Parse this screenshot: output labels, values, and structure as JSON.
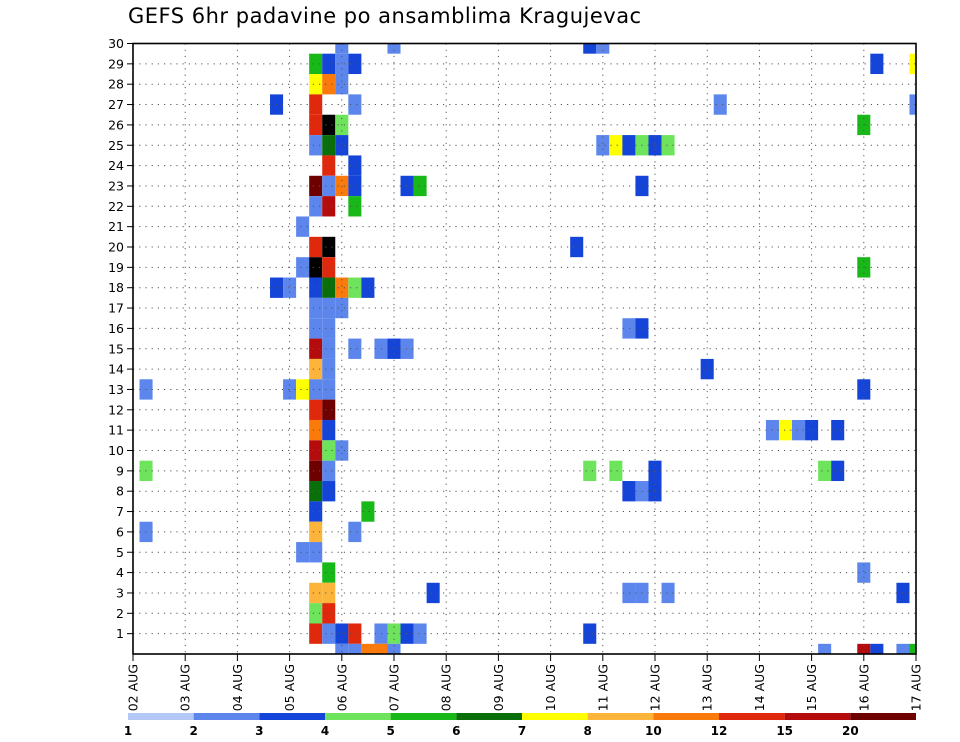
{
  "title": "GEFS 6hr padavine po ansamblima Kragujevac",
  "chart_data": {
    "type": "heatmap",
    "title": "GEFS 6hr padavine po ansamblima Kragujevac",
    "x_ticks": [
      "02 AUG",
      "03 AUG",
      "04 AUG",
      "05 AUG",
      "06 AUG",
      "07 AUG",
      "08 AUG",
      "09 AUG",
      "10 AUG",
      "11 AUG",
      "12 AUG",
      "13 AUG",
      "14 AUG",
      "15 AUG",
      "16 AUG",
      "17 AUG"
    ],
    "y_ticks": [
      "1",
      "2",
      "3",
      "4",
      "5",
      "6",
      "7",
      "8",
      "9",
      "10",
      "11",
      "12",
      "13",
      "14",
      "15",
      "16",
      "17",
      "18",
      "19",
      "20",
      "21",
      "22",
      "23",
      "24",
      "25",
      "26",
      "27",
      "28",
      "29",
      "30"
    ],
    "x_range": [
      0,
      60
    ],
    "y_range": [
      0,
      30
    ],
    "grid": true,
    "colorbar": {
      "labels": [
        "1",
        "2",
        "3",
        "4",
        "5",
        "6",
        "7",
        "8",
        "10",
        "12",
        "15",
        "20"
      ],
      "colors": [
        "#b4c8f6",
        "#5c86ec",
        "#1544d8",
        "#6ee45c",
        "#18b818",
        "#0a6e0a",
        "#ffff00",
        "#fcb43a",
        "#fa7a0c",
        "#e0280c",
        "#b40c0c",
        "#6e0000"
      ]
    },
    "cells": [
      [
        16,
        30,
        1
      ],
      [
        20,
        30,
        1
      ],
      [
        35,
        30,
        2
      ],
      [
        36,
        30,
        1
      ],
      [
        14,
        29,
        4
      ],
      [
        15,
        29,
        2
      ],
      [
        16,
        29,
        1
      ],
      [
        17,
        29,
        2
      ],
      [
        57,
        29,
        2
      ],
      [
        60,
        29,
        6
      ],
      [
        14,
        28,
        6
      ],
      [
        15,
        28,
        8
      ],
      [
        16,
        28,
        1
      ],
      [
        11,
        27,
        2
      ],
      [
        14,
        27,
        9
      ],
      [
        17,
        27,
        1
      ],
      [
        45,
        27,
        1
      ],
      [
        60,
        27,
        1
      ],
      [
        14,
        26,
        9
      ],
      [
        15,
        26,
        12
      ],
      [
        16,
        26,
        3
      ],
      [
        56,
        26,
        4
      ],
      [
        14,
        25,
        1
      ],
      [
        15,
        25,
        5
      ],
      [
        16,
        25,
        2
      ],
      [
        36,
        25,
        1
      ],
      [
        37,
        25,
        6
      ],
      [
        38,
        25,
        2
      ],
      [
        39,
        25,
        3
      ],
      [
        40,
        25,
        2
      ],
      [
        41,
        25,
        3
      ],
      [
        15,
        24,
        9
      ],
      [
        17,
        24,
        2
      ],
      [
        14,
        23,
        11
      ],
      [
        15,
        23,
        1
      ],
      [
        16,
        23,
        8
      ],
      [
        17,
        23,
        2
      ],
      [
        21,
        23,
        2
      ],
      [
        22,
        23,
        4
      ],
      [
        39,
        23,
        2
      ],
      [
        14,
        22,
        1
      ],
      [
        15,
        22,
        10
      ],
      [
        17,
        22,
        4
      ],
      [
        13,
        21,
        1
      ],
      [
        14,
        20,
        9
      ],
      [
        15,
        20,
        12
      ],
      [
        34,
        20,
        2
      ],
      [
        13,
        19,
        1
      ],
      [
        14,
        19,
        12
      ],
      [
        15,
        19,
        9
      ],
      [
        56,
        19,
        4
      ],
      [
        11,
        18,
        2
      ],
      [
        12,
        18,
        1
      ],
      [
        14,
        18,
        2
      ],
      [
        15,
        18,
        5
      ],
      [
        16,
        18,
        8
      ],
      [
        17,
        18,
        3
      ],
      [
        18,
        18,
        2
      ],
      [
        14,
        17,
        1
      ],
      [
        15,
        17,
        1
      ],
      [
        16,
        17,
        1
      ],
      [
        14,
        16,
        1
      ],
      [
        15,
        16,
        1
      ],
      [
        38,
        16,
        1
      ],
      [
        39,
        16,
        2
      ],
      [
        14,
        15,
        10
      ],
      [
        15,
        15,
        1
      ],
      [
        17,
        15,
        1
      ],
      [
        19,
        15,
        1
      ],
      [
        20,
        15,
        2
      ],
      [
        21,
        15,
        1
      ],
      [
        14,
        14,
        7
      ],
      [
        15,
        14,
        1
      ],
      [
        44,
        14,
        2
      ],
      [
        1,
        13,
        1
      ],
      [
        12,
        13,
        1
      ],
      [
        13,
        13,
        6
      ],
      [
        14,
        13,
        1
      ],
      [
        15,
        13,
        1
      ],
      [
        56,
        13,
        2
      ],
      [
        14,
        12,
        9
      ],
      [
        15,
        12,
        11
      ],
      [
        14,
        11,
        8
      ],
      [
        15,
        11,
        2
      ],
      [
        49,
        11,
        1
      ],
      [
        50,
        11,
        6
      ],
      [
        51,
        11,
        1
      ],
      [
        52,
        11,
        2
      ],
      [
        54,
        11,
        2
      ],
      [
        14,
        10,
        10
      ],
      [
        15,
        10,
        3
      ],
      [
        16,
        10,
        1
      ],
      [
        1,
        9,
        3
      ],
      [
        14,
        9,
        11
      ],
      [
        15,
        9,
        1
      ],
      [
        35,
        9,
        3
      ],
      [
        37,
        9,
        3
      ],
      [
        40,
        9,
        2
      ],
      [
        53,
        9,
        3
      ],
      [
        54,
        9,
        2
      ],
      [
        14,
        8,
        5
      ],
      [
        15,
        8,
        2
      ],
      [
        38,
        8,
        2
      ],
      [
        39,
        8,
        1
      ],
      [
        40,
        8,
        2
      ],
      [
        14,
        7,
        2
      ],
      [
        18,
        7,
        4
      ],
      [
        1,
        6,
        1
      ],
      [
        14,
        6,
        7
      ],
      [
        17,
        6,
        1
      ],
      [
        13,
        5,
        1
      ],
      [
        14,
        5,
        1
      ],
      [
        15,
        4,
        4
      ],
      [
        56,
        4,
        1
      ],
      [
        14,
        3,
        7
      ],
      [
        15,
        3,
        7
      ],
      [
        23,
        3,
        2
      ],
      [
        38,
        3,
        1
      ],
      [
        39,
        3,
        1
      ],
      [
        41,
        3,
        1
      ],
      [
        59,
        3,
        2
      ],
      [
        14,
        2,
        3
      ],
      [
        15,
        2,
        9
      ],
      [
        14,
        1,
        9
      ],
      [
        15,
        1,
        1
      ],
      [
        16,
        1,
        2
      ],
      [
        17,
        1,
        9
      ],
      [
        19,
        1,
        1
      ],
      [
        20,
        1,
        3
      ],
      [
        21,
        1,
        2
      ],
      [
        22,
        1,
        1
      ],
      [
        35,
        1,
        2
      ],
      [
        16,
        0,
        1
      ],
      [
        17,
        0,
        1
      ],
      [
        18,
        0,
        8
      ],
      [
        19,
        0,
        8
      ],
      [
        20,
        0,
        1
      ],
      [
        53,
        0,
        1
      ],
      [
        56,
        0,
        10
      ],
      [
        57,
        0,
        2
      ],
      [
        59,
        0,
        1
      ],
      [
        60,
        0,
        4
      ]
    ]
  }
}
